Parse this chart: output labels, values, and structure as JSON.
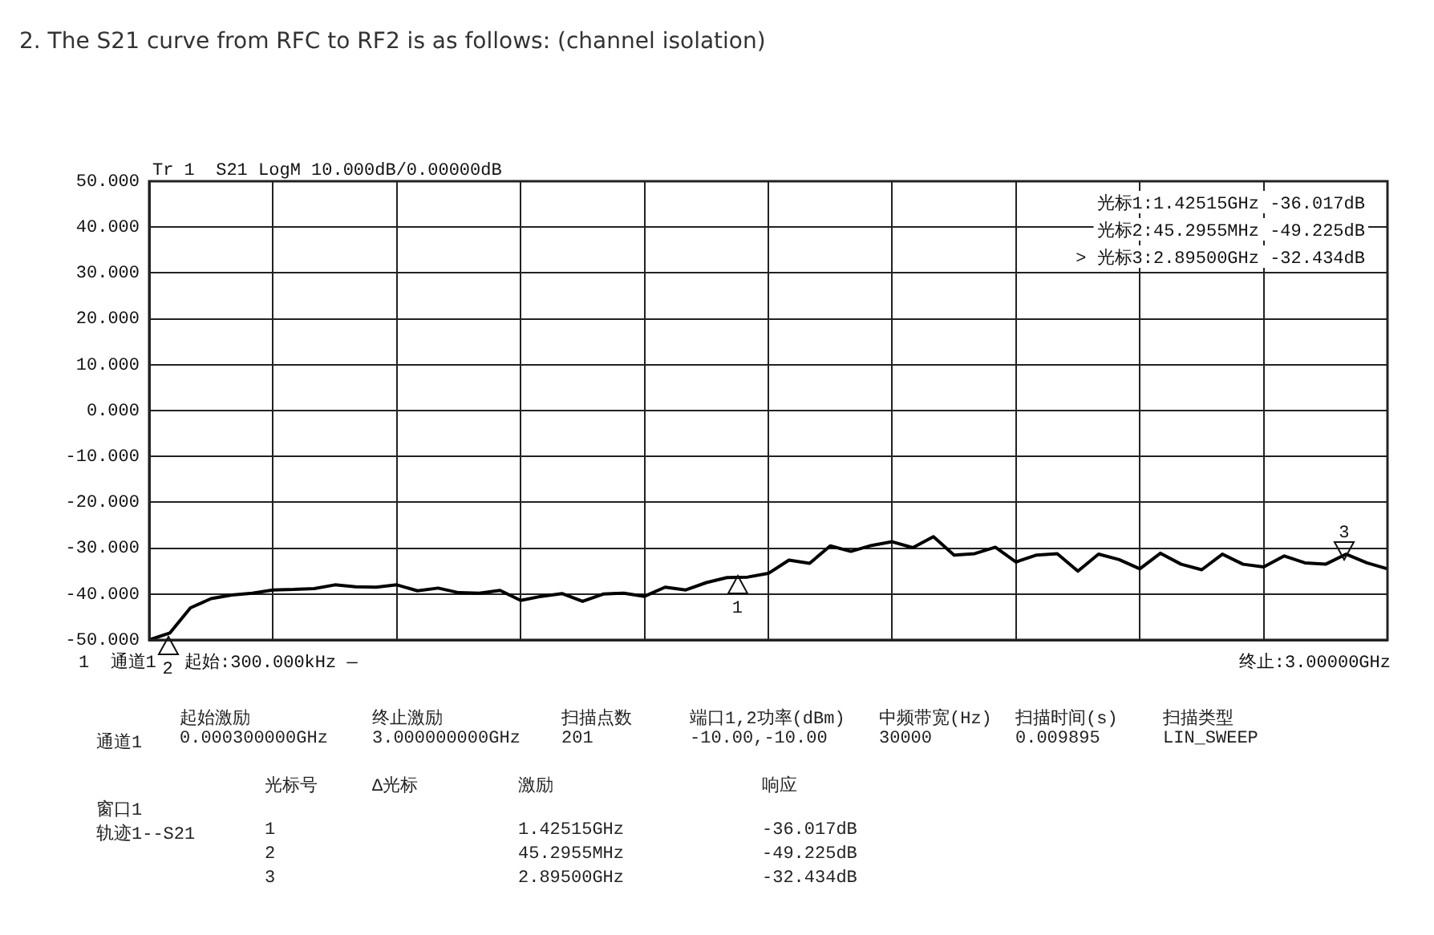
{
  "chart_data": {
    "type": "line",
    "title": "2. The S21 curve from RFC to RF2 is as follows: (channel isolation)",
    "categories": [
      null,
      null,
      null,
      null,
      null,
      null,
      null,
      null,
      null,
      null,
      null,
      null,
      null,
      null,
      null,
      null,
      null,
      null,
      null,
      null,
      null,
      null,
      null,
      null,
      null,
      null,
      null,
      null,
      null,
      null,
      null,
      null,
      null,
      null,
      null,
      null,
      null,
      null,
      null,
      null,
      null,
      null,
      null,
      null,
      null,
      null,
      null,
      null,
      null,
      null,
      null,
      null,
      null,
      null,
      null,
      null,
      null,
      null,
      null,
      null,
      null
    ],
    "series": [
      {
        "color": "#000000",
        "values": [
          -50,
          -48.5,
          -43,
          -41,
          -40.2,
          -39.8,
          -39.1,
          -39,
          -38.8,
          -38,
          -38.4,
          -38.5,
          -38,
          -39.3,
          -38.7,
          -39.7,
          -39.8,
          -39.2,
          -41.4,
          -40.5,
          -39.9,
          -41.6,
          -40,
          -39.8,
          -40.5,
          -38.5,
          -39.1,
          -37.5,
          -36.4,
          -36.3,
          -35.5,
          -32.6,
          -33.3,
          -29.5,
          -30.7,
          -29.4,
          -28.6,
          -29.9,
          -27.5,
          -31.5,
          -31.2,
          -29.8,
          -33,
          -31.5,
          -31.2,
          -35,
          -31.3,
          -32.5,
          -34.5,
          -31.1,
          -33.5,
          -34.7,
          -31.3,
          -33.5,
          -34.1,
          -31.7,
          -33.2,
          -33.5,
          -31.3,
          -33.2,
          -34.5
        ]
      }
    ],
    "ylim": [
      -50,
      50
    ],
    "yticks": [
      {
        "value": -50,
        "label": "-50.000"
      },
      {
        "value": -40,
        "label": "-40.000"
      },
      {
        "value": -30,
        "label": "-30.000"
      },
      {
        "value": -20,
        "label": "-20.000"
      },
      {
        "value": -10,
        "label": "-10.000"
      },
      {
        "value": 0,
        "label": "0.000"
      },
      {
        "value": 10,
        "label": "10.000"
      },
      {
        "value": 20,
        "label": "20.000"
      },
      {
        "value": 30,
        "label": "30.000"
      },
      {
        "value": 40,
        "label": "40.000"
      },
      {
        "value": 50,
        "label": "50.000"
      }
    ],
    "tick_labels": "y",
    "grid": true,
    "legend": false,
    "marker": "none",
    "line_style": "solid",
    "annotations": [
      "Tr 1  S21 LogM 10.000dB/0.00000dB",
      "光标1:1.42515GHz -36.017dB",
      "光标2:45.2955MHz -49.225dB",
      "> 光标3:2.89500GHz -32.434dB",
      "1  通道1",
      "起始:300.000kHz —",
      "终止:3.00000GHz",
      "\t起始激励\t终止激励\t扫描点数\t端口1,2功率(dBm)\t中频带宽(Hz)\t扫描时间(s)\t扫描类型",
      "通道1\t0.000300000GHz\t3.000000000GHz\t201\t-10.00,-10.00\t30000\t0.009895\tLIN_SWEEP",
      "\t光标号\tΔ光标\t激励\t响应",
      "窗口1",
      "轨迹1--S21\t1\t\t1.42515GHz\t-36.017dB",
      "\t2\t\t45.2955MHz\t-49.225dB",
      "\t3\t\t2.89500GHz\t-32.434dB",
      {
        "text": "1",
        "y": -36.017
      },
      {
        "text": "2",
        "y": -49.225
      },
      {
        "text": "3",
        "y": -32.434
      }
    ]
  }
}
